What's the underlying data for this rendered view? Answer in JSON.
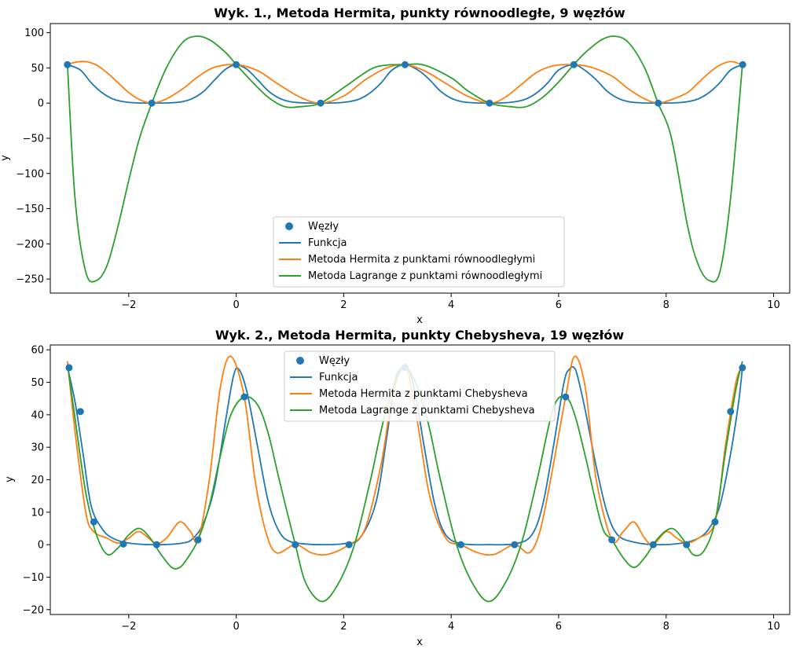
{
  "colors": {
    "nodes": "#1f77b4",
    "function": "#1f77b4",
    "hermite": "#ff7f0e",
    "lagrange": "#2ca02c"
  },
  "chart_data": [
    {
      "type": "line",
      "title": "Wyk. 1., Metoda Hermita, punkty równoodległe, 9 węzłów",
      "xlabel": "x",
      "ylabel": "y",
      "xlim": [
        -3.46,
        10.3
      ],
      "ylim": [
        -270,
        113
      ],
      "xticks": [
        -2,
        0,
        2,
        4,
        6,
        8,
        10
      ],
      "yticks": [
        100,
        50,
        0,
        -50,
        -100,
        -150,
        -200,
        -250
      ],
      "legend_position": "lower center",
      "nodes": {
        "name": "Węzły",
        "x": [
          -3.1416,
          -1.5708,
          0,
          1.5708,
          3.1416,
          4.7124,
          6.2832,
          7.854,
          9.4248
        ],
        "y": [
          54.6,
          0,
          54.6,
          0,
          54.6,
          0,
          54.6,
          0,
          54.6
        ]
      },
      "series": [
        {
          "name": "Funkcja",
          "color_key": "function",
          "x": [
            -3.14,
            -2.9,
            -2.7,
            -2.5,
            -2.3,
            -2.1,
            -1.9,
            -1.57,
            -1.2,
            -1.0,
            -0.8,
            -0.6,
            -0.4,
            -0.2,
            0,
            0.2,
            0.4,
            0.6,
            0.8,
            1.0,
            1.2,
            1.57,
            1.9,
            2.1,
            2.3,
            2.5,
            2.7,
            2.9,
            3.14,
            3.4,
            3.6,
            3.8,
            4.0,
            4.2,
            4.4,
            4.71,
            5.0,
            5.2,
            5.4,
            5.6,
            5.8,
            6.0,
            6.28,
            6.5,
            6.7,
            6.9,
            7.1,
            7.3,
            7.5,
            7.85,
            8.2,
            8.4,
            8.6,
            8.8,
            9.0,
            9.2,
            9.42
          ],
          "y": [
            54.6,
            47,
            29,
            15,
            6,
            2,
            0.5,
            0,
            0.5,
            2,
            7,
            17,
            33,
            48,
            54.6,
            48,
            33,
            17,
            7,
            2,
            0.5,
            0,
            0.5,
            2,
            6,
            15,
            29,
            47,
            54.6,
            46,
            33,
            17,
            7,
            2,
            0.5,
            0,
            0.5,
            2,
            6,
            15,
            29,
            47,
            54.6,
            46,
            33,
            17,
            7,
            2,
            0.5,
            0,
            0.5,
            2,
            6,
            15,
            29,
            47,
            54.6
          ]
        },
        {
          "name": "Metoda Hermita z punktami równoodległymi",
          "color_key": "hermite",
          "x": [
            -3.14,
            -3.0,
            -2.8,
            -2.6,
            -2.4,
            -2.2,
            -2.0,
            -1.8,
            -1.57,
            -1.3,
            -1.0,
            -0.7,
            -0.4,
            0,
            0.4,
            0.8,
            1.2,
            1.57,
            2.0,
            2.4,
            2.8,
            3.14,
            3.5,
            3.9,
            4.3,
            4.71,
            5.0,
            5.3,
            5.6,
            5.9,
            6.28,
            6.6,
            7.0,
            7.3,
            7.6,
            7.85,
            8.1,
            8.4,
            8.6,
            8.8,
            9.0,
            9.2,
            9.42
          ],
          "y": [
            54.6,
            58,
            59,
            54,
            43,
            29,
            15,
            5,
            0,
            6,
            20,
            38,
            51,
            54.6,
            46,
            26,
            8,
            0,
            10,
            33,
            50,
            54.6,
            46,
            28,
            10,
            0,
            8,
            26,
            44,
            53,
            54.6,
            51,
            38,
            20,
            6,
            0,
            5,
            15,
            29,
            43,
            54,
            59,
            54.6
          ]
        },
        {
          "name": "Metoda Lagrange z punktami równoodległymi",
          "color_key": "lagrange",
          "x": [
            -3.14,
            -3.0,
            -2.8,
            -2.6,
            -2.4,
            -2.2,
            -2.0,
            -1.8,
            -1.57,
            -1.3,
            -1.0,
            -0.75,
            -0.5,
            -0.2,
            0,
            0.3,
            0.6,
            0.9,
            1.2,
            1.57,
            2.0,
            2.5,
            2.8,
            3.14,
            3.5,
            4.0,
            4.3,
            4.71,
            5.1,
            5.4,
            5.7,
            6.0,
            6.28,
            6.5,
            6.8,
            7.05,
            7.3,
            7.6,
            7.85,
            8.1,
            8.4,
            8.6,
            8.8,
            9.0,
            9.2,
            9.42
          ],
          "y": [
            54.6,
            -135,
            -240,
            -252,
            -230,
            -175,
            -110,
            -50,
            0,
            50,
            86,
            95,
            90,
            72,
            54.6,
            30,
            8,
            -5,
            -5,
            0,
            22,
            48,
            54,
            54.6,
            54,
            36,
            18,
            0,
            -5,
            -5,
            8,
            30,
            54.6,
            72,
            90,
            95,
            86,
            50,
            0,
            -50,
            -175,
            -230,
            -252,
            -240,
            -135,
            54.6
          ]
        }
      ]
    },
    {
      "type": "line",
      "title": "Wyk. 2., Metoda Hermita, punkty Chebysheva, 19 węzłów",
      "xlabel": "x",
      "ylabel": "y",
      "xlim": [
        -3.46,
        10.3
      ],
      "ylim": [
        -21.5,
        61.5
      ],
      "xticks": [
        -2,
        0,
        2,
        4,
        6,
        8,
        10
      ],
      "yticks": [
        60,
        50,
        40,
        30,
        20,
        10,
        0,
        -10,
        -20
      ],
      "legend_position": "upper center",
      "nodes": {
        "name": "Węzły",
        "x": [
          -3.11,
          -2.9,
          -2.65,
          -2.1,
          -1.48,
          -0.71,
          0.15,
          1.1,
          2.1,
          3.14,
          4.18,
          5.18,
          6.13,
          6.99,
          7.76,
          8.38,
          8.91,
          9.2,
          9.42
        ],
        "y": [
          54.5,
          41,
          7,
          0.2,
          0,
          1.5,
          45.5,
          0,
          0,
          54.6,
          0,
          0,
          45.5,
          1.5,
          0,
          0,
          7,
          41,
          54.5
        ]
      },
      "series": [
        {
          "name": "Funkcja",
          "color_key": "function",
          "x": [
            -3.14,
            -3.0,
            -2.85,
            -2.7,
            -2.5,
            -2.3,
            -2.0,
            -1.5,
            -1.0,
            -0.8,
            -0.6,
            -0.4,
            -0.2,
            -0.05,
            0.05,
            0.2,
            0.4,
            0.6,
            0.8,
            1.0,
            1.3,
            1.6,
            2.0,
            2.3,
            2.6,
            2.8,
            2.95,
            3.05,
            3.14,
            3.25,
            3.35,
            3.5,
            3.7,
            3.9,
            4.2,
            4.7,
            5.2,
            5.5,
            5.7,
            5.9,
            6.1,
            6.2,
            6.28,
            6.35,
            6.5,
            6.7,
            6.9,
            7.1,
            7.4,
            7.8,
            8.3,
            8.6,
            8.8,
            9.0,
            9.2,
            9.35,
            9.42
          ],
          "y": [
            54.6,
            44,
            28,
            12,
            5,
            2,
            0.5,
            0,
            0.5,
            2,
            7,
            18,
            38,
            52,
            54,
            47,
            30,
            13,
            4,
            1,
            0.2,
            0,
            0.3,
            2,
            13,
            33,
            50,
            54,
            54.6,
            52,
            45,
            30,
            12,
            3,
            0.3,
            0,
            0.3,
            3,
            12,
            30,
            50,
            54,
            54.6,
            52,
            41,
            24,
            10,
            3,
            0.8,
            0,
            0.5,
            2,
            5,
            12,
            28,
            44,
            54.6
          ]
        },
        {
          "name": "Metoda Hermita z punktami Chebysheva",
          "color_key": "hermite",
          "x": [
            -3.14,
            -3.0,
            -2.8,
            -2.65,
            -2.4,
            -2.2,
            -2.0,
            -1.8,
            -1.5,
            -1.3,
            -1.05,
            -0.85,
            -0.71,
            -0.5,
            -0.3,
            -0.1,
            0.15,
            0.35,
            0.55,
            0.75,
            1.1,
            1.4,
            1.7,
            2.1,
            2.4,
            2.7,
            2.9,
            3.14,
            3.35,
            3.6,
            3.9,
            4.18,
            4.5,
            4.8,
            5.18,
            5.45,
            5.65,
            5.85,
            6.13,
            6.3,
            6.5,
            6.7,
            6.99,
            7.2,
            7.4,
            7.6,
            7.76,
            8.0,
            8.2,
            8.38,
            8.6,
            8.91,
            9.1,
            9.3,
            9.42
          ],
          "y": [
            56.5,
            35,
            10,
            4,
            2,
            0.5,
            2,
            4,
            0.5,
            2,
            7,
            4,
            1.5,
            20,
            48,
            58,
            45.5,
            20,
            4,
            -2.5,
            0,
            -2.5,
            -3,
            0,
            5,
            25,
            45,
            55,
            40,
            15,
            2,
            0,
            -2.5,
            -3,
            0,
            -2.5,
            4,
            20,
            45.5,
            58,
            48,
            20,
            1.5,
            4,
            7,
            2,
            0,
            4,
            2,
            0.5,
            2,
            7,
            30,
            50,
            55
          ]
        },
        {
          "name": "Metoda Lagrange z punktami Chebysheva",
          "color_key": "lagrange",
          "x": [
            -3.14,
            -3.0,
            -2.8,
            -2.6,
            -2.4,
            -2.2,
            -2.0,
            -1.8,
            -1.6,
            -1.4,
            -1.2,
            -1.05,
            -0.9,
            -0.71,
            -0.5,
            -0.3,
            -0.1,
            0.15,
            0.4,
            0.6,
            0.8,
            1.1,
            1.3,
            1.6,
            1.9,
            2.2,
            2.5,
            2.8,
            3.14,
            3.5,
            3.8,
            4.1,
            4.4,
            4.7,
            5.0,
            5.3,
            5.6,
            5.9,
            6.13,
            6.3,
            6.5,
            6.8,
            6.99,
            7.2,
            7.4,
            7.6,
            7.85,
            8.1,
            8.3,
            8.5,
            8.7,
            8.91,
            9.1,
            9.3,
            9.42
          ],
          "y": [
            55.5,
            39,
            16,
            3,
            -3,
            -1,
            3,
            5,
            2,
            -3,
            -7,
            -7,
            -4,
            1.5,
            12,
            27,
            40,
            45.5,
            43,
            34,
            20,
            0,
            -12,
            -17.5,
            -12,
            0,
            20,
            42,
            54.6,
            42,
            20,
            0,
            -12,
            -17.5,
            -12,
            0,
            20,
            42,
            45.5,
            40,
            27,
            6,
            1.5,
            -4,
            -7,
            -4,
            2,
            5,
            2,
            -3,
            -2,
            7,
            28,
            48,
            56.5
          ]
        }
      ]
    }
  ]
}
